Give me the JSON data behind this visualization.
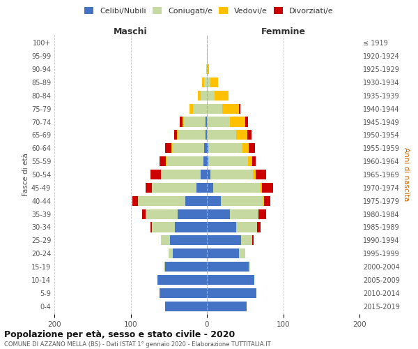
{
  "age_groups": [
    "0-4",
    "5-9",
    "10-14",
    "15-19",
    "20-24",
    "25-29",
    "30-34",
    "35-39",
    "40-44",
    "45-49",
    "50-54",
    "55-59",
    "60-64",
    "65-69",
    "70-74",
    "75-79",
    "80-84",
    "85-89",
    "90-94",
    "95-99",
    "100+"
  ],
  "birth_years": [
    "2015-2019",
    "2010-2014",
    "2005-2009",
    "2000-2004",
    "1995-1999",
    "1990-1994",
    "1985-1989",
    "1980-1984",
    "1975-1979",
    "1970-1974",
    "1965-1969",
    "1960-1964",
    "1955-1959",
    "1950-1954",
    "1945-1949",
    "1940-1944",
    "1935-1939",
    "1930-1934",
    "1925-1929",
    "1920-1924",
    "≤ 1919"
  ],
  "male": {
    "celibi": [
      55,
      62,
      65,
      55,
      45,
      48,
      42,
      38,
      28,
      14,
      8,
      5,
      4,
      2,
      2,
      0,
      0,
      0,
      0,
      0,
      0
    ],
    "coniugati": [
      0,
      0,
      0,
      2,
      5,
      12,
      30,
      42,
      62,
      58,
      52,
      48,
      42,
      35,
      28,
      18,
      8,
      4,
      1,
      0,
      0
    ],
    "vedovi": [
      0,
      0,
      0,
      0,
      0,
      0,
      0,
      0,
      0,
      0,
      0,
      1,
      1,
      2,
      2,
      5,
      4,
      2,
      0,
      0,
      0
    ],
    "divorziati": [
      0,
      0,
      0,
      0,
      0,
      0,
      2,
      5,
      8,
      8,
      14,
      8,
      8,
      4,
      4,
      0,
      0,
      0,
      0,
      0,
      0
    ]
  },
  "female": {
    "nubili": [
      52,
      65,
      62,
      55,
      42,
      45,
      38,
      30,
      18,
      8,
      5,
      2,
      2,
      0,
      0,
      0,
      0,
      0,
      0,
      0,
      0
    ],
    "coniugate": [
      0,
      0,
      0,
      2,
      8,
      14,
      28,
      38,
      55,
      62,
      55,
      52,
      45,
      38,
      30,
      20,
      10,
      5,
      1,
      0,
      0
    ],
    "vedove": [
      0,
      0,
      0,
      0,
      0,
      0,
      0,
      0,
      2,
      2,
      4,
      5,
      8,
      15,
      20,
      22,
      18,
      10,
      2,
      1,
      0
    ],
    "divorziate": [
      0,
      0,
      0,
      0,
      0,
      2,
      4,
      10,
      8,
      15,
      14,
      5,
      8,
      5,
      4,
      2,
      0,
      0,
      0,
      0,
      0
    ]
  },
  "colors": {
    "celibi": "#4472c4",
    "coniugati": "#c5d9a0",
    "vedovi": "#ffc000",
    "divorziati": "#cc0000"
  },
  "title": "Popolazione per età, sesso e stato civile - 2020",
  "subtitle": "COMUNE DI AZZANO MELLA (BS) - Dati ISTAT 1° gennaio 2020 - Elaborazione TUTTITALIA.IT",
  "ylabel_left": "Fasce di età",
  "ylabel_right": "Anni di nascita",
  "xlabel_left": "Maschi",
  "xlabel_right": "Femmine",
  "xlim": 200,
  "legend_labels": [
    "Celibi/Nubili",
    "Coniugati/e",
    "Vedovi/e",
    "Divorziati/e"
  ],
  "bg_color": "#ffffff",
  "grid_color": "#cccccc"
}
